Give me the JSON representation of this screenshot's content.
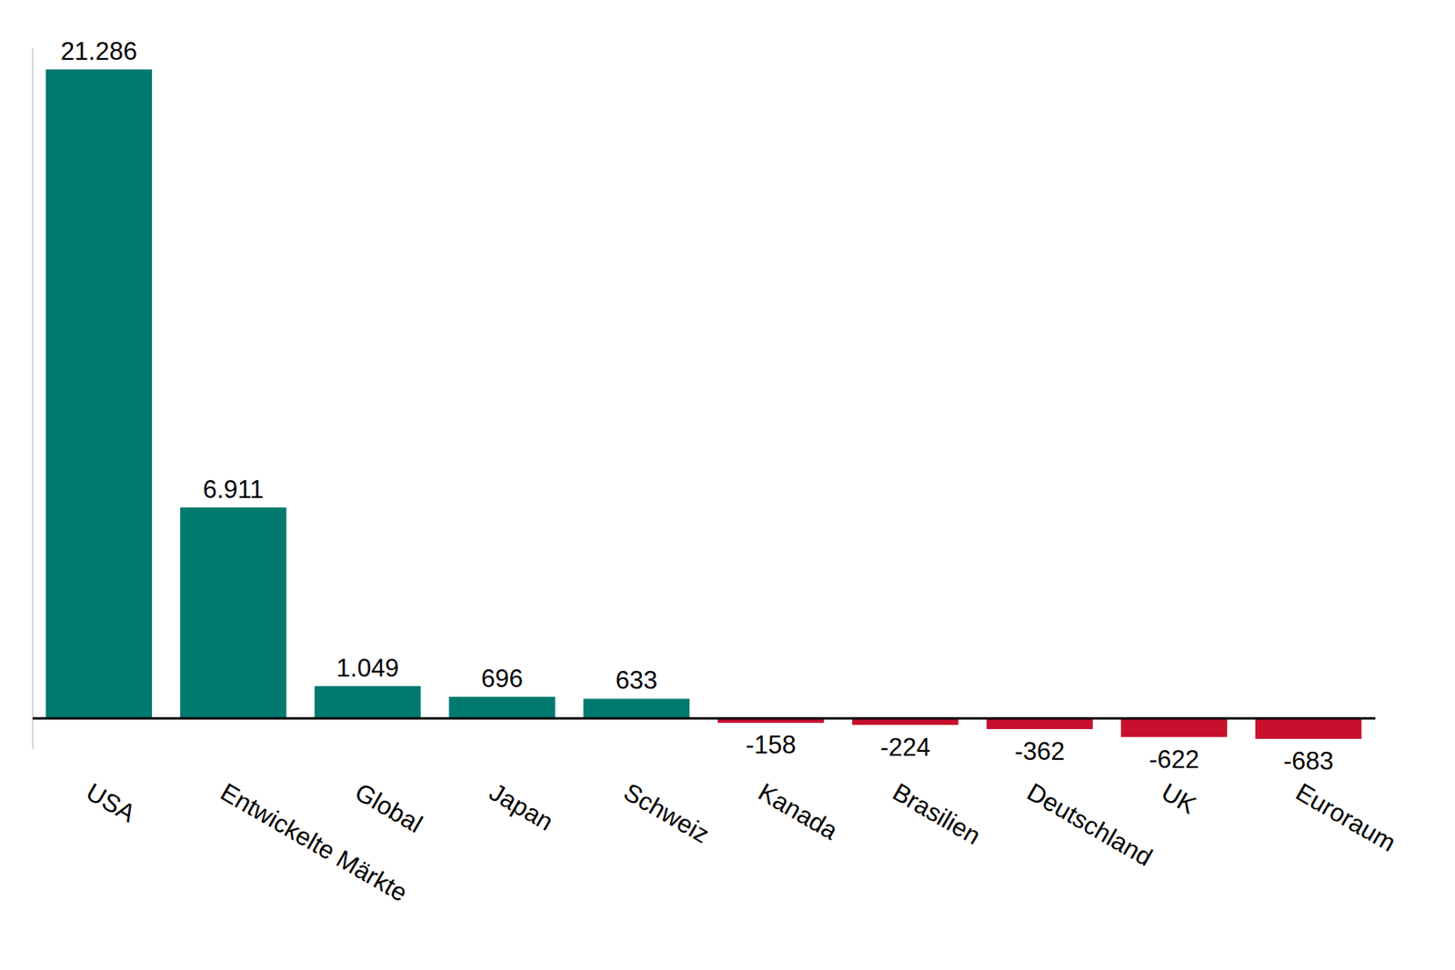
{
  "chart_data": {
    "type": "bar",
    "categories": [
      "USA",
      "Entwickelte Märkte",
      "Global",
      "Japan",
      "Schweiz",
      "Kanada",
      "Brasilien",
      "Deutschland",
      "UK",
      "Euroraum"
    ],
    "values": [
      21286,
      6911,
      1049,
      696,
      633,
      -158,
      -224,
      -362,
      -622,
      -683
    ],
    "value_labels": [
      "21.286",
      "6.911",
      "1.049",
      "696",
      "633",
      "-158",
      "-224",
      "-362",
      "-622",
      "-683"
    ],
    "colors": [
      "#00796f",
      "#00796f",
      "#00796f",
      "#00796f",
      "#00796f",
      "#c8102e",
      "#c8102e",
      "#c8102e",
      "#c8102e",
      "#c8102e"
    ],
    "ylim": [
      -1000,
      22000
    ],
    "yticks": [
      0
    ],
    "grid": false,
    "data_labels": true,
    "tick_labels": "x"
  }
}
